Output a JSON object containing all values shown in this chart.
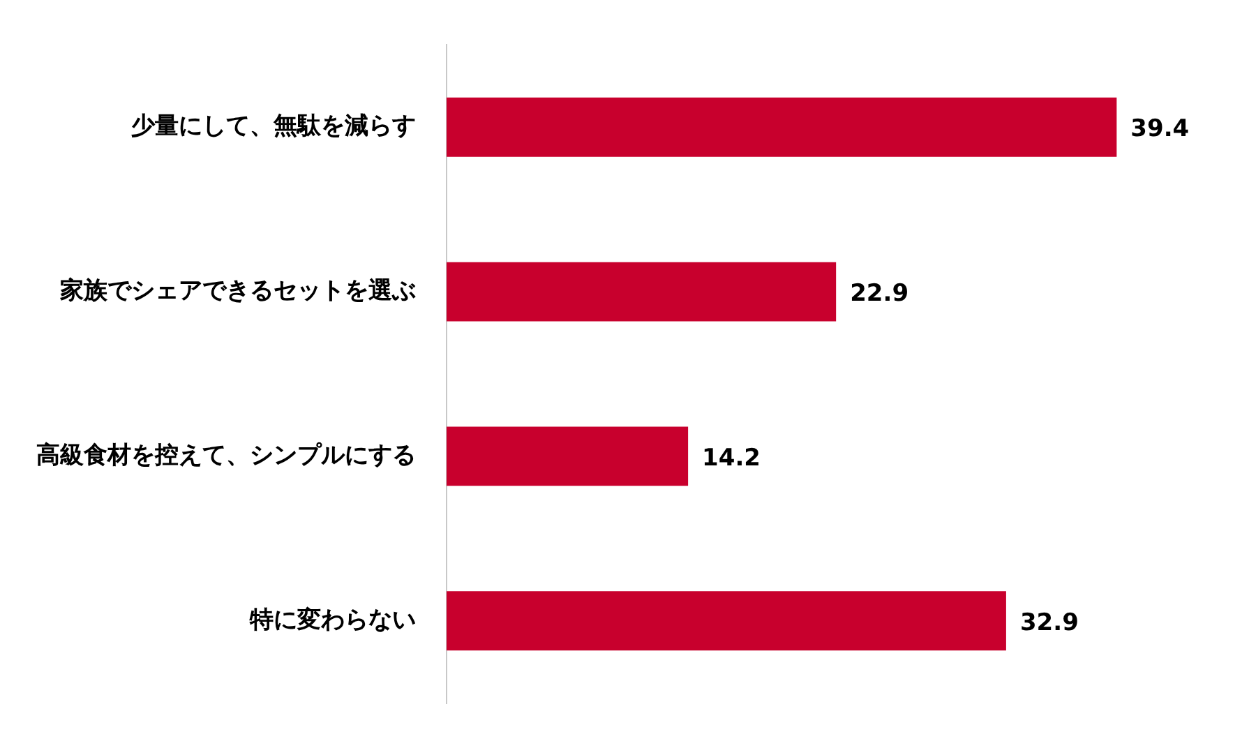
{
  "chart_data": {
    "type": "bar",
    "orientation": "horizontal",
    "categories": [
      "少量にして、無駄を減らす",
      "家族でシェアできるセットを選ぶ",
      "高級食材を控えて、シンプルにする",
      "特に変わらない"
    ],
    "values": [
      39.4,
      22.9,
      14.2,
      32.9
    ],
    "color": "#c8002d",
    "data_labels": true,
    "grid": false,
    "legend": false,
    "tick_labels": "y"
  }
}
